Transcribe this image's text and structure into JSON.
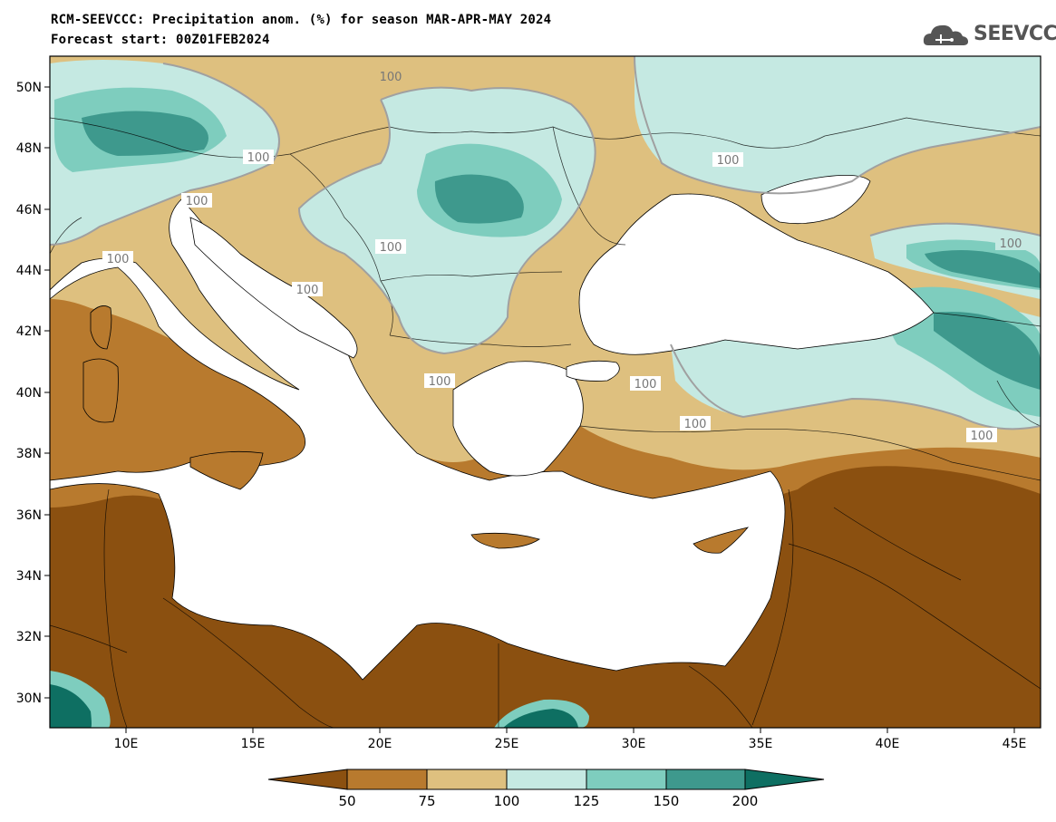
{
  "header": {
    "title_line1": "RCM-SEEVCCC: Precipitation anom. (%) for season MAR-APR-MAY 2024",
    "title_line2": "Forecast start: 00Z01FEB2024"
  },
  "logo": {
    "text": "SEEVCCC",
    "icon": "cloud-logo-icon"
  },
  "axes": {
    "lon_ticks": [
      "10E",
      "15E",
      "20E",
      "25E",
      "30E",
      "35E",
      "40E",
      "45E"
    ],
    "lat_ticks": [
      "50N",
      "48N",
      "46N",
      "44N",
      "42N",
      "40N",
      "38N",
      "36N",
      "34N",
      "32N",
      "30N"
    ]
  },
  "contour_labels": [
    "100",
    "100",
    "100",
    "100",
    "100",
    "100",
    "100",
    "100",
    "100",
    "100",
    "100",
    "100"
  ],
  "colorbar": {
    "tick_labels": [
      "50",
      "75",
      "100",
      "125",
      "150",
      "200"
    ],
    "colors": [
      "#8B5010",
      "#B87A2E",
      "#DEC07F",
      "#C5E9E2",
      "#7ECDBE",
      "#3E998D",
      "#0E6F62"
    ]
  },
  "palette": {
    "sea": "#ffffff",
    "very_dry": "#8B5010",
    "dry": "#B87A2E",
    "slightly_dry": "#DEC07F",
    "slightly_wet": "#C5E9E2",
    "wet": "#7ECDBE",
    "very_wet": "#3E998D",
    "extreme_wet": "#0E6F62"
  }
}
